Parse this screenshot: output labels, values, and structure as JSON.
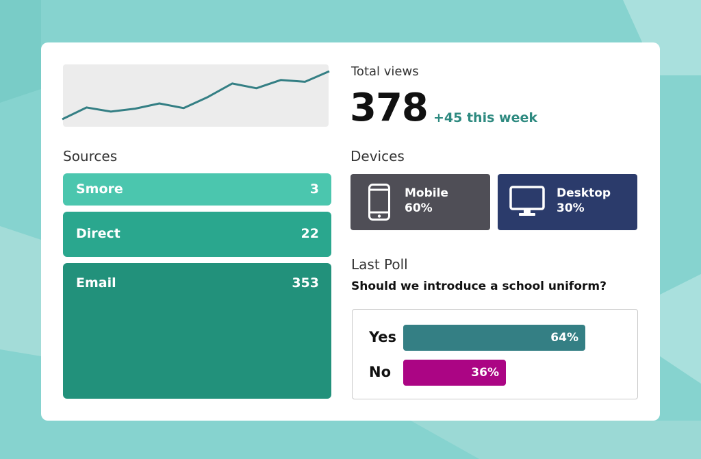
{
  "total_views": {
    "label": "Total views",
    "value": "378",
    "delta": "+45 this week",
    "trend": [
      0,
      20,
      13,
      18,
      27,
      19,
      38,
      61,
      53,
      67,
      64,
      82
    ]
  },
  "sources": {
    "title": "Sources",
    "items": [
      {
        "name": "Smore",
        "count": "3",
        "color": "#4bc6ae"
      },
      {
        "name": "Direct",
        "count": "22",
        "color": "#2aa78e"
      },
      {
        "name": "Email",
        "count": "353",
        "color": "#22917b"
      }
    ]
  },
  "devices": {
    "title": "Devices",
    "items": [
      {
        "name": "Mobile",
        "percent": "60%",
        "icon": "smartphone-icon",
        "color": "#4f4e56"
      },
      {
        "name": "Desktop",
        "percent": "30%",
        "icon": "desktop-monitor-icon",
        "color": "#2b3b6b"
      }
    ]
  },
  "poll": {
    "title": "Last Poll",
    "question": "Should we introduce a school uniform?",
    "options": [
      {
        "label": "Yes",
        "percent": "64%",
        "value": 0.64,
        "color": "#347f84"
      },
      {
        "label": "No",
        "percent": "36%",
        "value": 0.36,
        "color": "#ab0584"
      }
    ]
  },
  "colors": {
    "background": "#86d3cf",
    "card": "#ffffff",
    "accent": "#2e8a80",
    "sparkline": "#347f84"
  }
}
